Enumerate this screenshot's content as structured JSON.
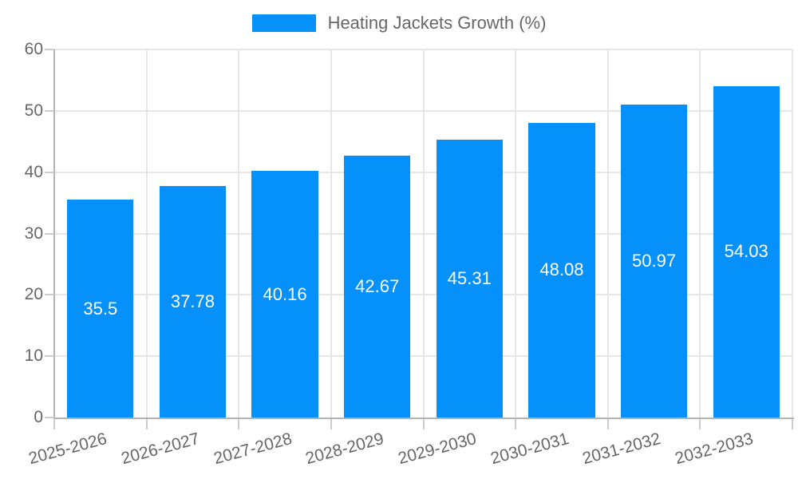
{
  "chart_data": {
    "type": "bar",
    "legend_label": "Heating Jackets Growth (%)",
    "categories": [
      "2025-2026",
      "2026-2027",
      "2027-2028",
      "2028-2029",
      "2029-2030",
      "2030-2031",
      "2031-2032",
      "2032-2033"
    ],
    "values": [
      35.5,
      37.78,
      40.16,
      42.67,
      45.31,
      48.08,
      50.97,
      54.03
    ],
    "value_labels": [
      "35.5",
      "37.78",
      "40.16",
      "42.67",
      "45.31",
      "48.08",
      "50.97",
      "54.03"
    ],
    "xlabel": "",
    "ylabel": "",
    "ylim": [
      0,
      60
    ],
    "yticks": [
      0,
      10,
      20,
      30,
      40,
      50,
      60
    ],
    "grid": "on",
    "legend_position": "top-center",
    "x_label_rotation_deg": -15,
    "colors": {
      "bar": "#0690f9",
      "text": "#666666",
      "grid": "#e6e6e6",
      "axis": "#b3b3b3",
      "tick": "#cccccc",
      "value_label": "#ffffff",
      "background": "#ffffff"
    }
  }
}
